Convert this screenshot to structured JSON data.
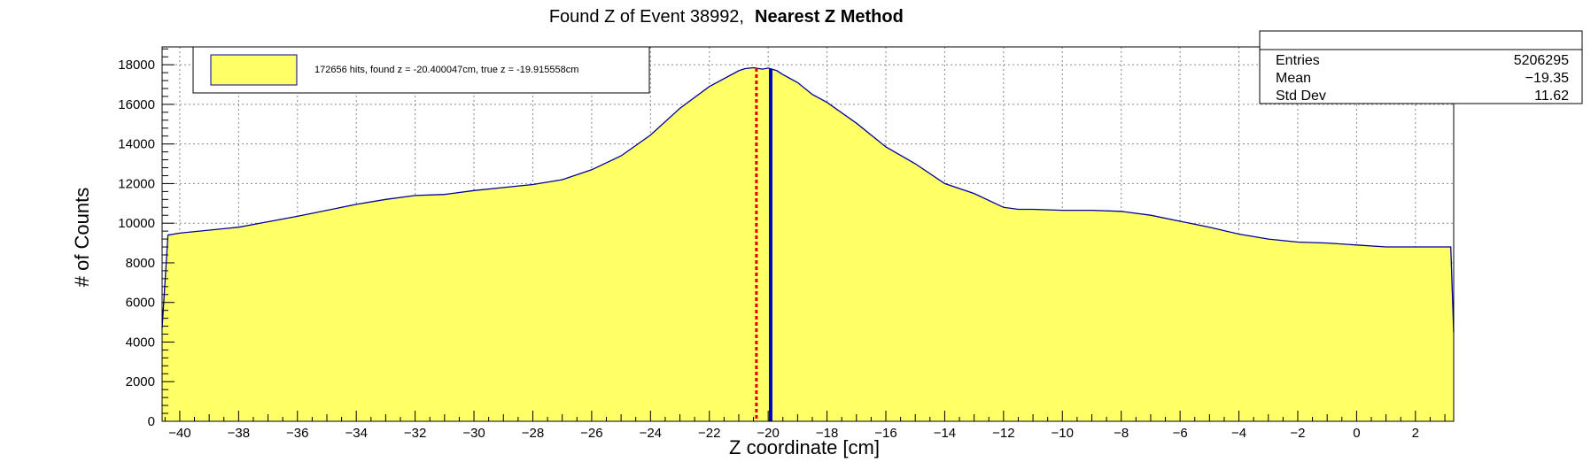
{
  "chart_data": {
    "type": "histogram",
    "title": "Found Z of Event 38992,",
    "title_method": "Nearest Z Method",
    "xlabel": "Z coordinate [cm]",
    "ylabel": "# of Counts",
    "xlim": [
      -40.6,
      3.3
    ],
    "ylim": [
      0,
      18900
    ],
    "x_ticks": [
      -40,
      -38,
      -36,
      -34,
      -32,
      -30,
      -28,
      -26,
      -24,
      -22,
      -20,
      -18,
      -16,
      -14,
      -12,
      -10,
      -8,
      -6,
      -4,
      -2,
      0,
      2
    ],
    "x_tick_labels": [
      "−40",
      "−38",
      "−36",
      "−34",
      "−32",
      "−30",
      "−28",
      "−26",
      "−24",
      "−22",
      "−20",
      "−18",
      "−16",
      "−14",
      "−12",
      "−10",
      "−8",
      "−6",
      "−4",
      "−2",
      "0",
      "2"
    ],
    "y_ticks": [
      0,
      2000,
      4000,
      6000,
      8000,
      10000,
      12000,
      14000,
      16000,
      18000
    ],
    "y_tick_labels": [
      "0",
      "2000",
      "4000",
      "6000",
      "8000",
      "10000",
      "12000",
      "14000",
      "16000",
      "18000"
    ],
    "grid": true,
    "fill_color": "#ffff66",
    "line_color": "#000099",
    "curve": {
      "x": [
        -40.6,
        -40.4,
        -40.0,
        -38.0,
        -36.0,
        -34.0,
        -33.0,
        -32.0,
        -31.0,
        -30.0,
        -29.0,
        -28.0,
        -27.0,
        -26.0,
        -25.0,
        -24.0,
        -23.0,
        -22.0,
        -21.0,
        -20.8,
        -20.5,
        -20.2,
        -20.0,
        -19.7,
        -19.5,
        -19.0,
        -18.5,
        -18.0,
        -17.0,
        -16.0,
        -15.0,
        -14.0,
        -13.0,
        -12.0,
        -11.5,
        -11.0,
        -10.0,
        -9.0,
        -8.0,
        -7.0,
        -6.0,
        -5.0,
        -4.0,
        -3.0,
        -2.0,
        -1.0,
        0.0,
        1.0,
        2.0,
        3.0,
        3.2,
        3.3
      ],
      "y": [
        4700,
        9400,
        9500,
        9800,
        10350,
        10950,
        11200,
        11400,
        11450,
        11650,
        11800,
        11950,
        12200,
        12700,
        13400,
        14450,
        15800,
        16900,
        17700,
        17800,
        17850,
        17780,
        17830,
        17700,
        17500,
        17100,
        16500,
        16100,
        15050,
        13850,
        13000,
        12000,
        11500,
        10800,
        10700,
        10700,
        10650,
        10650,
        10600,
        10400,
        10100,
        9800,
        9450,
        9200,
        9050,
        9000,
        8900,
        8800,
        8800,
        8800,
        8800,
        4500
      ]
    },
    "found_z": -20.400047,
    "true_z": -19.915558,
    "found_line_color": "#dd0000",
    "true_line_color": "#0000cc",
    "legend": {
      "label": "172656 hits, found z = -20.400047cm, true z = -19.915558cm",
      "placement": "top-left"
    },
    "stats_box": {
      "placement": "top-right",
      "rows": [
        {
          "label": "Entries",
          "value": "5206295"
        },
        {
          "label": "Mean",
          "value": "−19.35"
        },
        {
          "label": "Std Dev",
          "value": "11.62"
        }
      ]
    }
  }
}
